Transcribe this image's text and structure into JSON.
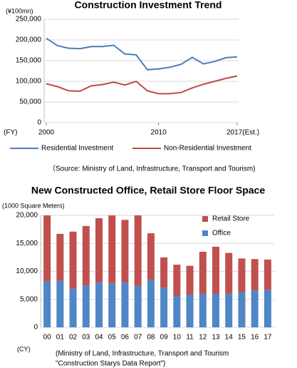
{
  "chart_data": [
    {
      "type": "line",
      "title": "Construction Investment Trend",
      "y_unit": "(¥100mn)",
      "xlabel": "(FY)",
      "x": [
        2000,
        2001,
        2002,
        2003,
        2004,
        2005,
        2006,
        2007,
        2008,
        2009,
        2010,
        2011,
        2012,
        2013,
        2014,
        2015,
        2016,
        2017
      ],
      "series": [
        {
          "name": "Residential Investment",
          "color": "#4a7ebb",
          "values": [
            204000,
            186000,
            180000,
            179000,
            184000,
            184000,
            187000,
            166000,
            164000,
            128000,
            130000,
            134000,
            141000,
            158000,
            142000,
            148000,
            157000,
            159000
          ]
        },
        {
          "name": "Non-Residential Investment",
          "color": "#be4b48",
          "values": [
            94000,
            87000,
            77000,
            76000,
            89000,
            92000,
            98000,
            91000,
            100000,
            77000,
            70000,
            70000,
            73000,
            84000,
            93000,
            100000,
            107000,
            113000
          ]
        }
      ],
      "xlim": [
        2000,
        2017
      ],
      "xticks": [
        2000,
        2010,
        {
          "value": 2017,
          "label": "2017(Est.)"
        }
      ],
      "ylim": [
        0,
        250000
      ],
      "yticks": [
        0,
        {
          "value": 50000,
          "label": "50,000"
        },
        {
          "value": 100000,
          "label": "100,000"
        },
        {
          "value": 150000,
          "label": "150,000"
        },
        {
          "value": 200000,
          "label": "200,000"
        },
        {
          "value": 250000,
          "label": "250,000"
        }
      ],
      "grid": true,
      "legend": "bottom",
      "annotations": [
        "（Source:  Ministry of Land, Infrastructure, Transport and Tourism)"
      ]
    },
    {
      "type": "bar",
      "stacked": true,
      "title": "New Constructed Office, Retail Store Floor Space",
      "y_unit": "(1000 Square Meters)",
      "xlabel": "(CY)",
      "categories": [
        "00",
        "01",
        "02",
        "03",
        "04",
        "05",
        "06",
        "07",
        "08",
        "09",
        "10",
        "11",
        "12",
        "13",
        "14",
        "15",
        "16",
        "17"
      ],
      "series": [
        {
          "name": "Office",
          "color": "#4f86c6",
          "values": [
            8200,
            8300,
            6900,
            7500,
            8000,
            7800,
            8000,
            7400,
            8500,
            7100,
            5600,
            5800,
            6000,
            6000,
            6000,
            6300,
            6600,
            6700
          ]
        },
        {
          "name": "Retail Store",
          "color": "#c0504d",
          "values": [
            12300,
            8400,
            10200,
            10600,
            11500,
            12700,
            11200,
            12900,
            8300,
            5400,
            5600,
            5200,
            7500,
            8400,
            7300,
            6000,
            5600,
            5400
          ]
        }
      ],
      "ylim": [
        0,
        20000
      ],
      "yticks": [
        0,
        {
          "value": 5000,
          "label": "5,000"
        },
        {
          "value": 10000,
          "label": "10,000"
        },
        {
          "value": 15000,
          "label": "15,000"
        },
        {
          "value": 20000,
          "label": "20,000"
        }
      ],
      "grid": true,
      "legend": "top-right",
      "annotations": [
        "(Ministry of Land, Infrastructure,  Transport and Tourism",
        "\"Construction Starys Data Report\")"
      ]
    }
  ]
}
